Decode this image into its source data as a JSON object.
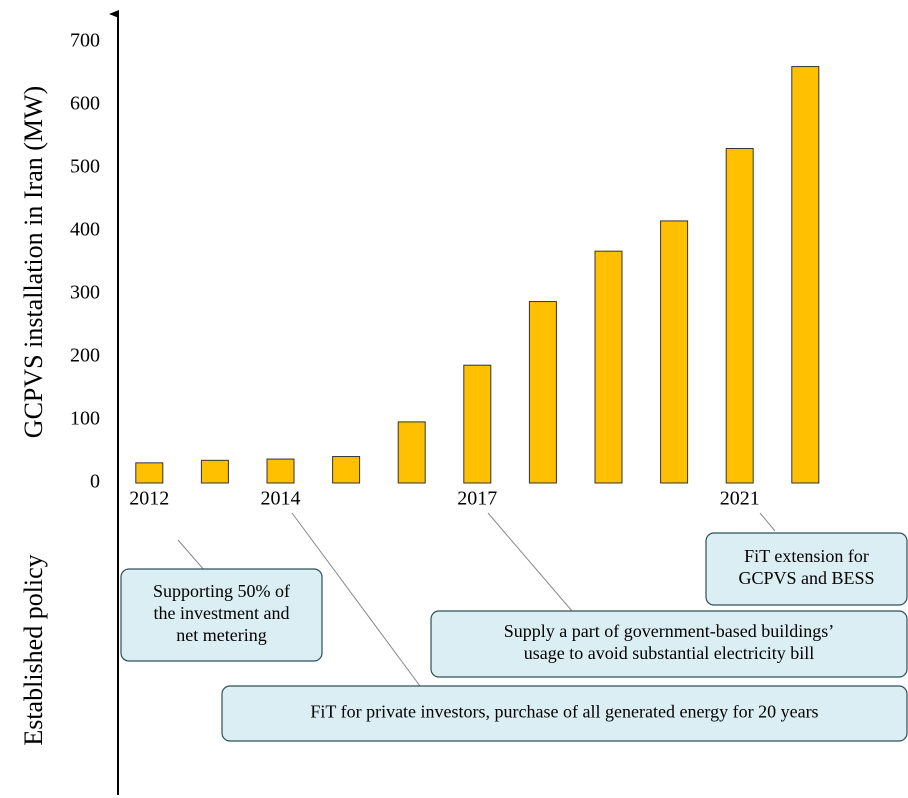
{
  "chart_data": {
    "type": "bar",
    "y_axis_label": "GCPVS installation in Iran (MW)",
    "lower_axis_label": "Established policy",
    "categories": [
      "2012",
      null,
      "2014",
      null,
      null,
      "2017",
      null,
      null,
      null,
      "2021",
      null
    ],
    "values": [
      32,
      36,
      38,
      42,
      97,
      187,
      288,
      368,
      416,
      531,
      661
    ],
    "color": "#ffc000",
    "ylim": [
      0,
      700
    ],
    "yticks": [
      0,
      100,
      200,
      300,
      400,
      500,
      600,
      700
    ],
    "grid": false,
    "annotations": [
      {
        "lines": [
          "Supporting 50% of",
          "the investment and",
          "net metering"
        ]
      },
      {
        "lines": [
          "FiT for private investors, purchase of all generated energy for 20 years"
        ]
      },
      {
        "lines": [
          "Supply a part  of government-based buildings’",
          "usage to avoid substantial electricity bill"
        ]
      },
      {
        "lines": [
          "FiT extension for",
          "GCPVS and BESS"
        ]
      }
    ]
  }
}
